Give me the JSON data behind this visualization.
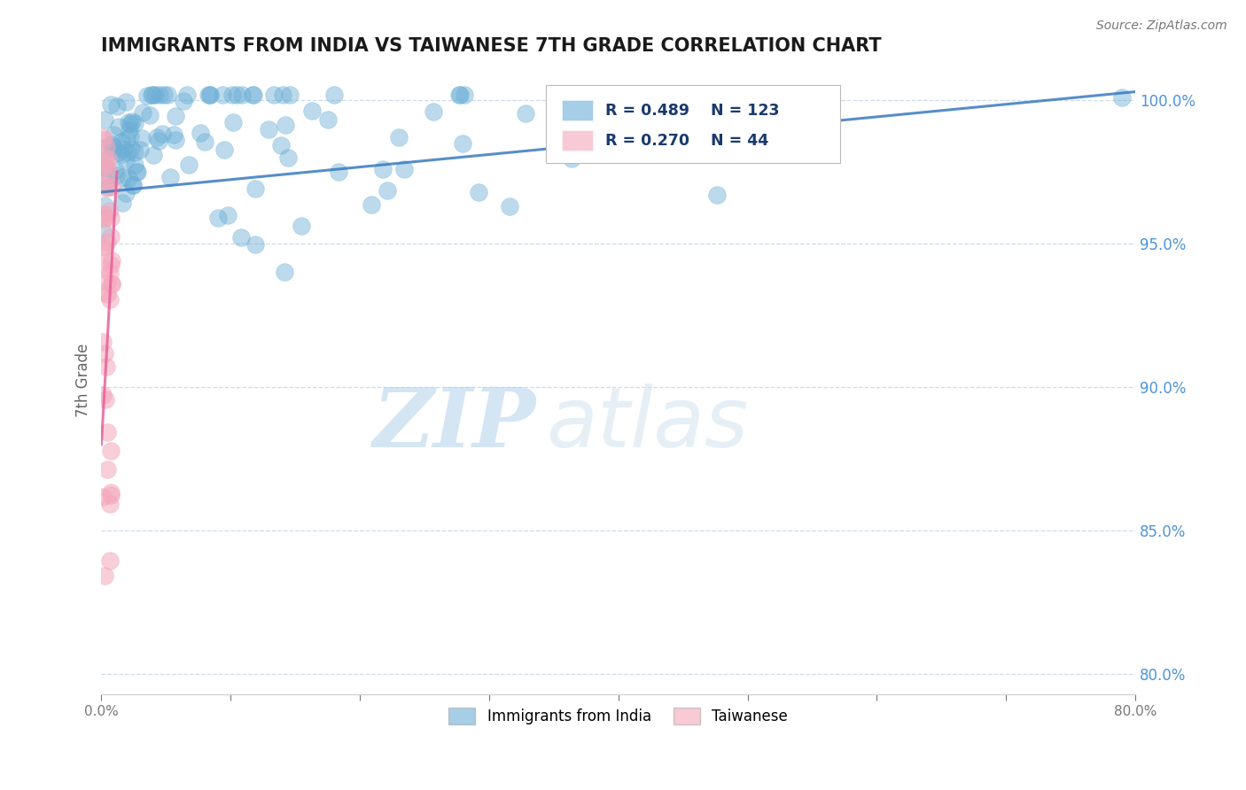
{
  "title": "IMMIGRANTS FROM INDIA VS TAIWANESE 7TH GRADE CORRELATION CHART",
  "source": "Source: ZipAtlas.com",
  "ylabel": "7th Grade",
  "xlim": [
    0.0,
    0.8
  ],
  "ylim": [
    0.793,
    1.012
  ],
  "xtick_positions": [
    0.0,
    0.1,
    0.2,
    0.3,
    0.4,
    0.5,
    0.6,
    0.7,
    0.8
  ],
  "xtick_labels": [
    "0.0%",
    "",
    "",
    "",
    "",
    "",
    "",
    "",
    "80.0%"
  ],
  "ytick_positions": [
    0.8,
    0.85,
    0.9,
    0.95,
    1.0
  ],
  "ytick_labels": [
    "80.0%",
    "85.0%",
    "90.0%",
    "95.0%",
    "100.0%"
  ],
  "blue_R": 0.489,
  "blue_N": 123,
  "pink_R": 0.27,
  "pink_N": 44,
  "blue_color": "#6baed6",
  "pink_color": "#f4a7bb",
  "blue_line_color": "#3a7abf",
  "pink_line_color": "#e8609a",
  "legend_label_blue": "Immigrants from India",
  "legend_label_pink": "Taiwanese",
  "watermark_zip": "ZIP",
  "watermark_atlas": "atlas",
  "grid_color": "#c8d8e8",
  "title_color": "#1a1a1a"
}
